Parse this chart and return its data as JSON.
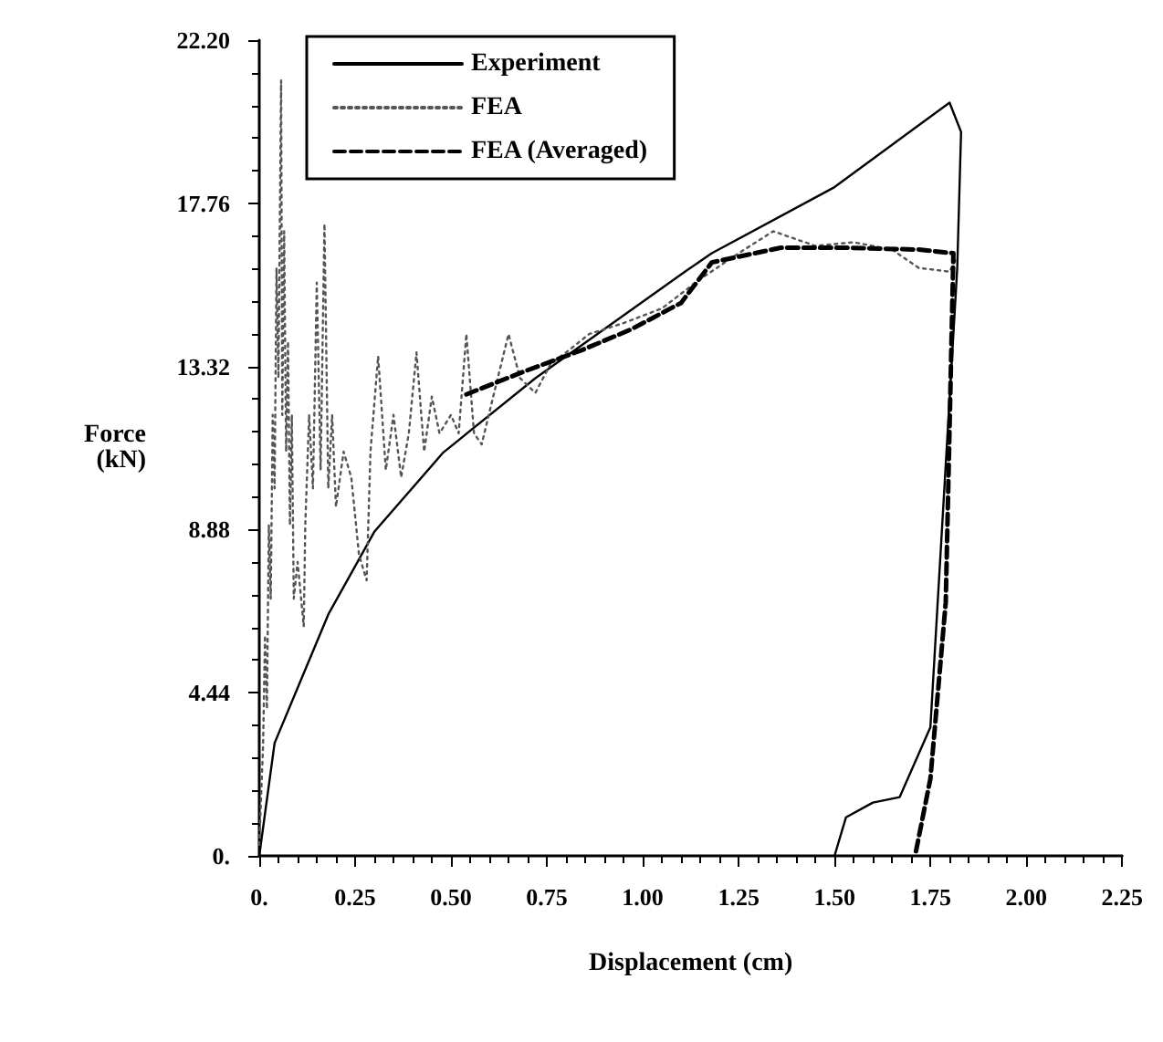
{
  "chart_data": {
    "type": "line",
    "xlabel": "Displacement (cm)",
    "ylabel": "Force\n(kN)",
    "xlim": [
      0,
      2.25
    ],
    "ylim": [
      0,
      22.2
    ],
    "xticks": [
      {
        "value": 0,
        "label": "0."
      },
      0.25,
      {
        "value": 0.5,
        "label": "0.50"
      },
      0.75,
      {
        "value": 1,
        "label": "1.00"
      },
      1.25,
      {
        "value": 1.5,
        "label": "1.50"
      },
      1.75,
      {
        "value": 2,
        "label": "2.00"
      },
      2.25
    ],
    "yticks": [
      {
        "value": 0,
        "label": "0."
      },
      4.44,
      8.88,
      13.32,
      17.76,
      {
        "value": 22.2,
        "label": "22.20"
      }
    ],
    "grid": false,
    "legend": "top left",
    "marker": "none",
    "series": [
      {
        "name": "Experiment",
        "color": "#000000",
        "line_style": "solid",
        "x": [
          0,
          0.04,
          0.18,
          0.3,
          0.48,
          0.72,
          1.11,
          1.18,
          1.5,
          1.8,
          1.83,
          1.82,
          1.75,
          1.67,
          1.6,
          1.53,
          1.5
        ],
        "values": [
          0,
          3.07,
          6.57,
          8.82,
          10.98,
          13.0,
          15.9,
          16.4,
          18.2,
          20.5,
          19.7,
          16.0,
          3.5,
          1.6,
          1.45,
          1.05,
          0
        ]
      },
      {
        "name": "FEA",
        "color": "#555555",
        "line_style": "dotted",
        "x": [
          0,
          0.01,
          0.015,
          0.02,
          0.025,
          0.03,
          0.035,
          0.04,
          0.045,
          0.05,
          0.057,
          0.06,
          0.065,
          0.07,
          0.075,
          0.08,
          0.085,
          0.09,
          0.1,
          0.116,
          0.12,
          0.13,
          0.14,
          0.15,
          0.16,
          0.17,
          0.18,
          0.19,
          0.2,
          0.22,
          0.24,
          0.26,
          0.28,
          0.29,
          0.31,
          0.33,
          0.35,
          0.37,
          0.39,
          0.41,
          0.43,
          0.45,
          0.47,
          0.5,
          0.52,
          0.54,
          0.56,
          0.58,
          0.61,
          0.65,
          0.68,
          0.72,
          0.76,
          0.8,
          0.86,
          0.95,
          1.05,
          1.15,
          1.25,
          1.34,
          1.45,
          1.55,
          1.65,
          1.72,
          1.8,
          1.82
        ],
        "values": [
          0.3,
          3,
          6,
          4,
          9,
          7,
          12,
          10,
          16,
          13,
          21.1,
          12,
          17,
          11,
          14,
          9,
          12,
          7,
          8,
          6.25,
          9,
          12,
          10,
          15.6,
          10.5,
          17.2,
          10,
          12,
          9.5,
          11,
          10.3,
          8.2,
          7.5,
          11,
          13.6,
          10.5,
          12,
          10.3,
          11.5,
          13.7,
          11,
          12.5,
          11.5,
          12,
          11.5,
          14.2,
          11.5,
          11.2,
          12.5,
          14.2,
          13.0,
          12.6,
          13.4,
          13.7,
          14.2,
          14.5,
          14.9,
          15.7,
          16.4,
          17.0,
          16.6,
          16.7,
          16.5,
          16.0,
          15.9,
          16.3
        ]
      },
      {
        "name": "FEA (Averaged)",
        "color": "#000000",
        "line_style": "dashed",
        "x": [
          0.54,
          0.69,
          0.84,
          0.97,
          1.1,
          1.18,
          1.36,
          1.53,
          1.72,
          1.81,
          1.79,
          1.75,
          1.71
        ],
        "values": [
          12.56,
          13.18,
          13.76,
          14.33,
          15.05,
          16.15,
          16.55,
          16.55,
          16.5,
          16.4,
          6.9,
          2.1,
          0
        ]
      }
    ]
  }
}
